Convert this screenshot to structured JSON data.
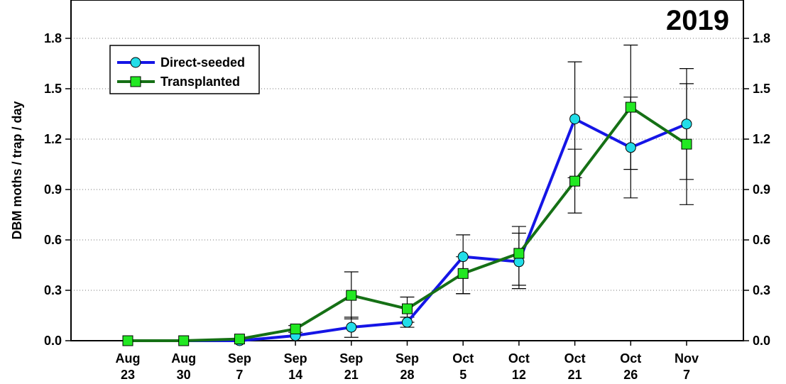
{
  "chart_data": {
    "type": "line",
    "title": "2019",
    "ylabel": "DBM moths / trap / day",
    "xlabel": "",
    "categories": [
      [
        "Aug",
        "23"
      ],
      [
        "Aug",
        "30"
      ],
      [
        "Sep",
        "7"
      ],
      [
        "Sep",
        "14"
      ],
      [
        "Sep",
        "21"
      ],
      [
        "Sep",
        "28"
      ],
      [
        "Oct",
        "5"
      ],
      [
        "Oct",
        "12"
      ],
      [
        "Oct",
        "21"
      ],
      [
        "Oct",
        "26"
      ],
      [
        "Nov",
        "7"
      ]
    ],
    "ylim": [
      0,
      2.0
    ],
    "yticks": [
      "0.0",
      "0.3",
      "0.6",
      "0.9",
      "1.2",
      "1.5",
      "1.8"
    ],
    "grid": "dotted horizontal",
    "legend_position": "top-left",
    "series": [
      {
        "name": "Direct-seeded",
        "color": "#1515e6",
        "marker": "circle",
        "marker_color": "#22dde8",
        "values": [
          0.0,
          0.0,
          0.0,
          0.03,
          0.08,
          0.11,
          0.5,
          0.47,
          1.32,
          1.15,
          1.29
        ],
        "err_low": [
          0.0,
          0.0,
          0.0,
          0.03,
          0.02,
          0.08,
          0.28,
          0.31,
          0.97,
          0.85,
          0.96
        ],
        "err_high": [
          0.0,
          0.0,
          0.0,
          0.03,
          0.14,
          0.14,
          0.63,
          0.64,
          1.66,
          1.45,
          1.62
        ]
      },
      {
        "name": "Transplanted",
        "color": "#157015",
        "marker": "square",
        "marker_color": "#22e822",
        "values": [
          0.0,
          0.0,
          0.01,
          0.07,
          0.27,
          0.19,
          0.4,
          0.52,
          0.95,
          1.39,
          1.17
        ],
        "err_low": [
          0.0,
          0.0,
          0.01,
          0.05,
          0.13,
          0.11,
          0.28,
          0.33,
          0.76,
          1.02,
          0.81
        ],
        "err_high": [
          0.0,
          0.0,
          0.01,
          0.09,
          0.41,
          0.26,
          0.5,
          0.68,
          1.14,
          1.76,
          1.53
        ]
      }
    ]
  }
}
